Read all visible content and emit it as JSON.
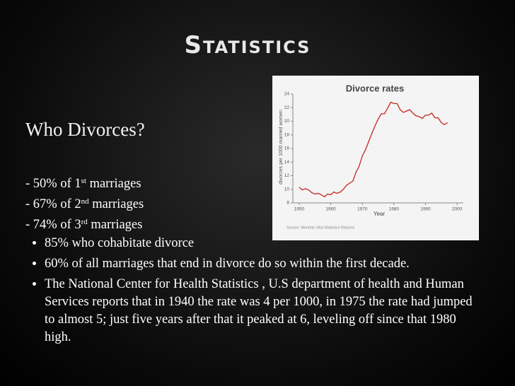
{
  "slide": {
    "title": "Statistics",
    "heading": "Who Divorces?",
    "stats": [
      {
        "text": "- 50% of 1",
        "sup": "st",
        "after": " marriages"
      },
      {
        "text": "- 67% of 2",
        "sup": "nd",
        "after": " marriages"
      },
      {
        "text": "- 74% of 3",
        "sup": "rd",
        "after": " marriages"
      }
    ],
    "bullets": [
      "85% who cohabitate divorce",
      "60% of all marriages that end in divorce do so within the first decade.",
      "The National Center for Health Statistics , U.S department of health and Human Services reports that in 1940 the rate was 4 per 1000, in 1975 the rate had jumped to almost 5; just five years after that it peaked at 6, leveling off since that 1980 high."
    ]
  },
  "chart_data": {
    "type": "line",
    "title": "Divorce rates",
    "y_label": "divorces per 1000 married women",
    "x_label": "Year",
    "source": "Source: Monthly Vital Statistics Reports",
    "color": "#c8322d",
    "x": [
      1950,
      1951,
      1952,
      1953,
      1954,
      1955,
      1956,
      1957,
      1958,
      1959,
      1960,
      1961,
      1962,
      1963,
      1964,
      1965,
      1966,
      1967,
      1968,
      1969,
      1970,
      1971,
      1972,
      1973,
      1974,
      1975,
      1976,
      1977,
      1978,
      1979,
      1980,
      1981,
      1982,
      1983,
      1984,
      1985,
      1986,
      1987,
      1988,
      1989,
      1990,
      1991,
      1992,
      1993,
      1994,
      1995,
      1996,
      1997
    ],
    "values": [
      10.3,
      9.9,
      10.1,
      9.9,
      9.5,
      9.3,
      9.4,
      9.2,
      8.9,
      9.3,
      9.2,
      9.6,
      9.4,
      9.6,
      10.0,
      10.6,
      10.9,
      11.2,
      12.5,
      13.4,
      14.9,
      15.8,
      17.0,
      18.2,
      19.3,
      20.3,
      21.1,
      21.1,
      21.9,
      22.8,
      22.6,
      22.6,
      21.7,
      21.3,
      21.5,
      21.7,
      21.2,
      20.8,
      20.7,
      20.4,
      20.9,
      20.9,
      21.2,
      20.5,
      20.5,
      19.8,
      19.5,
      19.8
    ],
    "xlim": [
      1948,
      2002
    ],
    "ylim": [
      8,
      24
    ],
    "xticks": [
      1950,
      1960,
      1970,
      1980,
      1990,
      2000
    ],
    "yticks": [
      8,
      10,
      12,
      14,
      16,
      18,
      20,
      22,
      24
    ]
  }
}
